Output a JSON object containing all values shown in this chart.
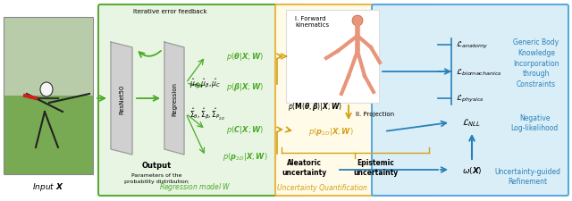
{
  "bg_color": "#ffffff",
  "green_box_color": "#e8f5e2",
  "green_edge": "#5aaa3c",
  "yellow_box_color": "#fffbe8",
  "yellow_edge": "#e8b84b",
  "blue_box_color": "#daeef8",
  "blue_edge": "#5aabdb",
  "gc": "#4aaa28",
  "yc": "#d4a017",
  "bc": "#2980b9",
  "input_label": "Input $\\boldsymbol{X}$",
  "resnet_label": "ResNet50",
  "regression_label": "Regression",
  "output_label": "Output",
  "output_sublabel": "Parameters of the\nprobability distribution",
  "regression_model_label": "Regression model $W$",
  "iterative_label": "Iterative error feedback",
  "forward_label": "I. Forward\nkinematics",
  "projection_label": "II. Projection",
  "uncertainty_quant_label": "Uncertainty Quantification",
  "aleatoric_label": "Aleatoric\nuncertainty",
  "epistemic_label": "Epistemic\nuncertainty",
  "generic_label": "Generic Body\nKnowledge\nIncorporation\nthrough\nConstraints",
  "nll_label": "Negative\nLog-likelihood",
  "ug_label": "Uncertainty-guided\nRefinement"
}
